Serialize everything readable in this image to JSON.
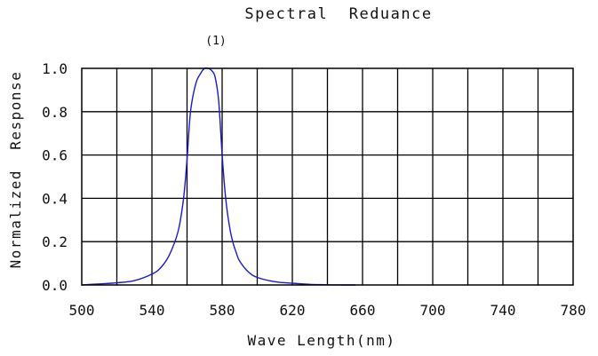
{
  "chart_data": {
    "type": "line",
    "title": "Spectral  Reduance",
    "annotation": "(1)",
    "xlabel": "Wave Length(nm)",
    "ylabel": "Normalized  Response",
    "xlim": [
      500,
      780
    ],
    "ylim": [
      0.0,
      1.0
    ],
    "x_ticks": [
      "500",
      "540",
      "580",
      "620",
      "660",
      "700",
      "740",
      "780"
    ],
    "y_ticks": [
      "0.0",
      "0.2",
      "0.4",
      "0.6",
      "0.8",
      "1.0"
    ],
    "grid": true,
    "line_color": "#1a1acc",
    "series": [
      {
        "x": [
          500,
          510,
          520,
          530,
          540,
          545,
          550,
          555,
          558,
          560,
          562,
          565,
          568,
          570,
          572,
          574,
          576,
          578,
          580,
          582,
          584,
          586,
          588,
          590,
          595,
          600,
          610,
          620,
          630,
          640,
          650,
          656
        ],
        "y": [
          0.0,
          0.005,
          0.01,
          0.02,
          0.05,
          0.08,
          0.14,
          0.25,
          0.4,
          0.58,
          0.8,
          0.93,
          0.98,
          1.0,
          1.0,
          0.99,
          0.96,
          0.85,
          0.6,
          0.4,
          0.28,
          0.2,
          0.15,
          0.11,
          0.06,
          0.035,
          0.015,
          0.008,
          0.003,
          0.001,
          0.0,
          0.0
        ]
      }
    ]
  }
}
